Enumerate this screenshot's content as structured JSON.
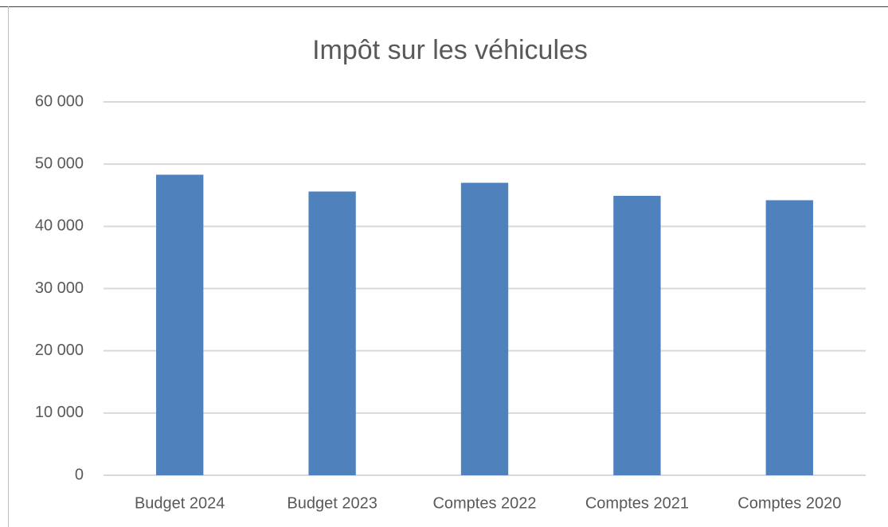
{
  "chart_data": {
    "type": "bar",
    "title": "Impôt sur les véhicules",
    "categories": [
      "Budget 2024",
      "Budget 2023",
      "Comptes 2022",
      "Comptes 2021",
      "Comptes 2020"
    ],
    "values": [
      48300,
      45600,
      47000,
      44900,
      44200
    ],
    "color": "#4f81bd",
    "ylim": [
      0,
      60000
    ],
    "yticks": [
      0,
      {
        "value": 10000,
        "label": "10 000"
      },
      {
        "value": 20000,
        "label": "20 000"
      },
      {
        "value": 30000,
        "label": "30 000"
      },
      {
        "value": 40000,
        "label": "40 000"
      },
      {
        "value": 50000,
        "label": "50 000"
      },
      {
        "value": 60000,
        "label": "60 000"
      }
    ],
    "grid": true
  }
}
